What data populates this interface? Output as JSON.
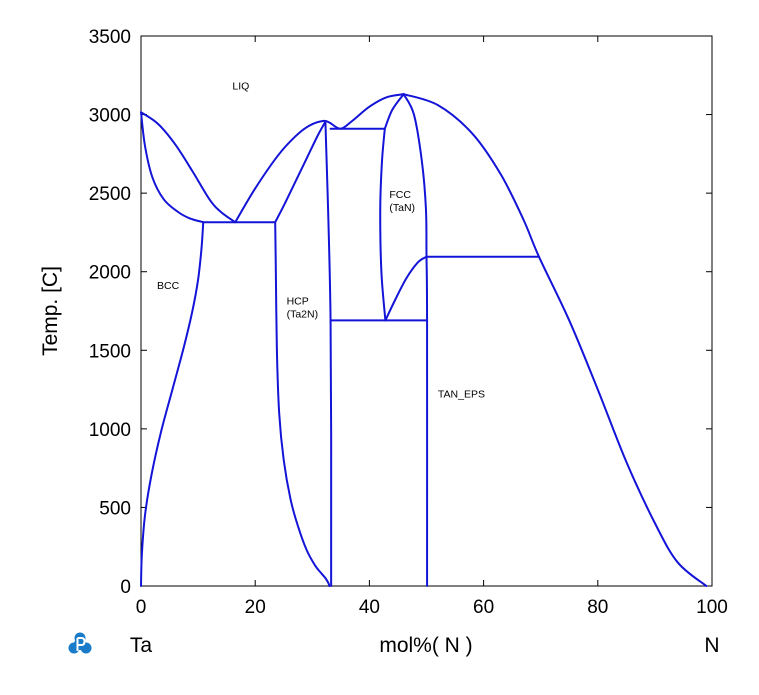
{
  "chart_data": {
    "type": "line",
    "title": "",
    "xlabel": "mol%( N )",
    "ylabel": "Temp. [C]",
    "xlim": [
      0,
      100
    ],
    "ylim": [
      0,
      3500
    ],
    "x_ticks": [
      "0",
      "20",
      "40",
      "60",
      "80",
      "100"
    ],
    "y_ticks": [
      "0",
      "500",
      "1000",
      "1500",
      "2000",
      "2500",
      "3000",
      "3500"
    ],
    "x_tick_values": [
      0,
      20,
      40,
      60,
      80,
      100
    ],
    "y_tick_values": [
      0,
      500,
      1000,
      1500,
      2000,
      2500,
      3000,
      3500
    ],
    "grid": false,
    "line_color": "#1414d8",
    "left_element": "Ta",
    "right_element": "N",
    "logo_icon": "thermo-calc-p-logo",
    "regions": [
      {
        "lines": [
          "LIQ"
        ],
        "x": 16,
        "y": 3160
      },
      {
        "lines": [
          "BCC"
        ],
        "x": 2.8,
        "y": 1890
      },
      {
        "lines": [
          "HCP",
          "(Ta2N)"
        ],
        "x": 25.5,
        "y": 1790
      },
      {
        "lines": [
          "FCC",
          "(TaN)"
        ],
        "x": 43.5,
        "y": 2470
      },
      {
        "lines": [
          "TAN_EPS"
        ],
        "x": 52,
        "y": 1200
      }
    ],
    "curves": [
      {
        "name": "ta-liquidus-left",
        "points": [
          [
            0,
            3015
          ],
          [
            3,
            2940
          ],
          [
            6,
            2810
          ],
          [
            9,
            2640
          ],
          [
            12,
            2460
          ],
          [
            14,
            2380
          ],
          [
            16.5,
            2315
          ]
        ]
      },
      {
        "name": "ta-solidus",
        "points": [
          [
            0,
            3015
          ],
          [
            0.7,
            2800
          ],
          [
            2,
            2600
          ],
          [
            4,
            2460
          ],
          [
            6.5,
            2380
          ],
          [
            8.5,
            2340
          ],
          [
            10.9,
            2315
          ]
        ]
      },
      {
        "name": "bcc-solvus",
        "points": [
          [
            10.9,
            2315
          ],
          [
            10.6,
            2150
          ],
          [
            10,
            1950
          ],
          [
            9,
            1750
          ],
          [
            7.5,
            1520
          ],
          [
            5.5,
            1250
          ],
          [
            3.5,
            980
          ],
          [
            1.8,
            700
          ],
          [
            0.7,
            450
          ],
          [
            0.15,
            200
          ],
          [
            0,
            0
          ]
        ]
      },
      {
        "name": "eutectic-line",
        "points": [
          [
            10.9,
            2315
          ],
          [
            23.5,
            2315
          ]
        ]
      },
      {
        "name": "hcp-liquidus",
        "points": [
          [
            16.5,
            2315
          ],
          [
            20,
            2530
          ],
          [
            24,
            2740
          ],
          [
            27,
            2860
          ],
          [
            29.5,
            2930
          ],
          [
            32,
            2960
          ],
          [
            33.2,
            2945
          ]
        ]
      },
      {
        "name": "hcp-solidus",
        "points": [
          [
            23.5,
            2315
          ],
          [
            25,
            2420
          ],
          [
            27,
            2570
          ],
          [
            29,
            2720
          ],
          [
            31,
            2870
          ],
          [
            32.3,
            2955
          ]
        ]
      },
      {
        "name": "hcp-left-boundary",
        "points": [
          [
            23.5,
            2315
          ],
          [
            23.6,
            2050
          ],
          [
            23.8,
            1500
          ],
          [
            24.2,
            1100
          ],
          [
            25,
            800
          ],
          [
            26.2,
            550
          ],
          [
            27.5,
            380
          ],
          [
            29,
            230
          ],
          [
            30.5,
            130
          ],
          [
            31.6,
            80
          ],
          [
            32.3,
            50
          ],
          [
            32.8,
            20
          ],
          [
            33,
            0
          ]
        ]
      },
      {
        "name": "hcp-right-boundary",
        "points": [
          [
            32.3,
            2955
          ],
          [
            33.2,
            1690
          ],
          [
            33.3,
            0
          ]
        ]
      },
      {
        "name": "peritectic-line",
        "points": [
          [
            33.2,
            2910
          ],
          [
            42.7,
            2910
          ]
        ]
      },
      {
        "name": "liquid-dip",
        "points": [
          [
            33.2,
            2945
          ],
          [
            35,
            2910
          ],
          [
            37,
            2960
          ],
          [
            40,
            3050
          ],
          [
            43,
            3110
          ],
          [
            46,
            3130
          ]
        ]
      },
      {
        "name": "fcc-left-liquidus",
        "points": [
          [
            42.7,
            2910
          ],
          [
            44,
            3030
          ],
          [
            46,
            3130
          ]
        ]
      },
      {
        "name": "fcc-left-boundary",
        "points": [
          [
            42.7,
            2910
          ],
          [
            42.2,
            2700
          ],
          [
            41.9,
            2400
          ],
          [
            42.1,
            2000
          ],
          [
            42.8,
            1690
          ]
        ]
      },
      {
        "name": "fcc-right-boundary",
        "points": [
          [
            46,
            3130
          ],
          [
            47.8,
            3000
          ],
          [
            49.2,
            2700
          ],
          [
            49.9,
            2400
          ],
          [
            50,
            2100
          ],
          [
            50.1,
            1690
          ],
          [
            50.1,
            0
          ]
        ]
      },
      {
        "name": "tan-eps-upper",
        "points": [
          [
            42.8,
            1690
          ],
          [
            44.5,
            1820
          ],
          [
            46.5,
            1960
          ],
          [
            48.5,
            2060
          ],
          [
            50,
            2095
          ]
        ]
      },
      {
        "name": "eutectoid-line",
        "points": [
          [
            33.2,
            1690
          ],
          [
            50.1,
            1690
          ]
        ]
      },
      {
        "name": "tan-eps-line",
        "points": [
          [
            50,
            2095
          ],
          [
            69.7,
            2095
          ]
        ]
      },
      {
        "name": "liquid-right",
        "points": [
          [
            46,
            3130
          ],
          [
            52,
            3060
          ],
          [
            58,
            2880
          ],
          [
            63,
            2620
          ],
          [
            67,
            2330
          ],
          [
            69.7,
            2095
          ],
          [
            75,
            1690
          ],
          [
            80,
            1250
          ],
          [
            85,
            790
          ],
          [
            90,
            400
          ],
          [
            94,
            150
          ],
          [
            99,
            0
          ]
        ]
      }
    ]
  }
}
